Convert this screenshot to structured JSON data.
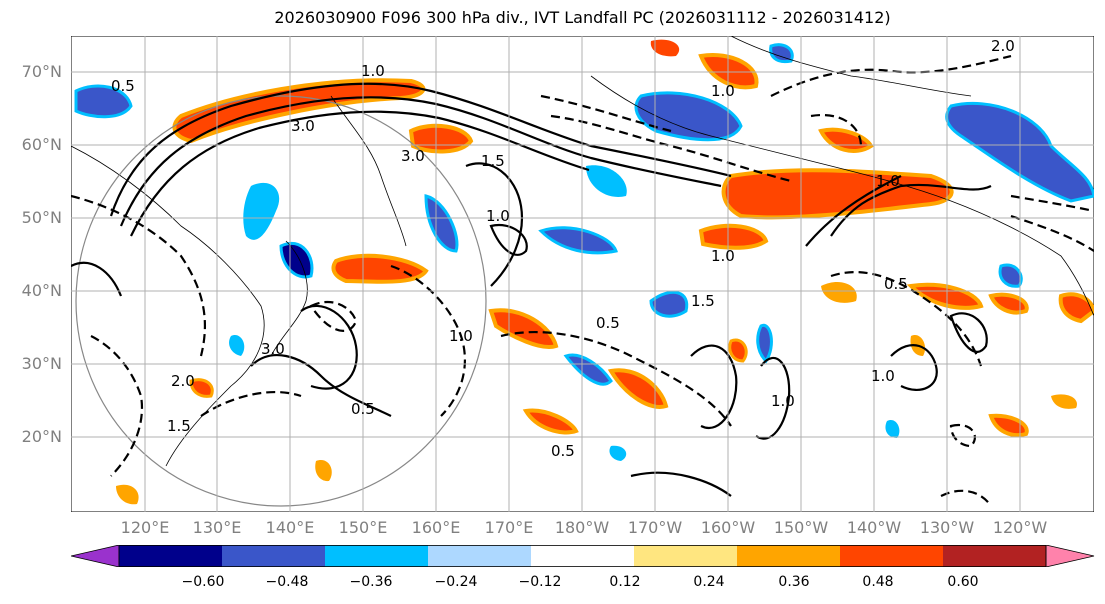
{
  "title": "2026030900 F096 300 hPa div., IVT Landfall PC (2026031112 - 2026031412)",
  "lat_labels": [
    "70°N",
    "60°N",
    "50°N",
    "40°N",
    "30°N",
    "20°N"
  ],
  "lon_labels": [
    "120°E",
    "130°E",
    "140°E",
    "150°E",
    "160°E",
    "170°E",
    "180°W",
    "170°W",
    "160°W",
    "150°W",
    "140°W",
    "130°W",
    "120°W"
  ],
  "contour_labels": [
    "0.5",
    "3.0",
    "3.0",
    "1.0",
    "1.5",
    "2.0",
    "2.0",
    "1.0",
    "0.5",
    "1.0",
    "1.0",
    "0.5",
    "1.5",
    "1.0",
    "3.0",
    "1.0",
    "0.5",
    "1.0",
    "1.5",
    "1.0",
    "0.5"
  ],
  "colorbar": {
    "colors": [
      "#9a32cd",
      "#00008b",
      "#3a56c9",
      "#00bfff",
      "#add8ff",
      "#ffffff",
      "#ffe680",
      "#ffa500",
      "#ff4500",
      "#b22222",
      "#ff82ab"
    ],
    "tick_labels": [
      "−0.60",
      "−0.48",
      "−0.36",
      "−0.24",
      "−0.12",
      "0.12",
      "0.24",
      "0.36",
      "0.48",
      "0.60"
    ]
  },
  "colors": {
    "positive_strong": "#ff4500",
    "positive_mid": "#ffa500",
    "negative_mid": "#3a56c9",
    "negative_light": "#00bfff",
    "grid": "#b0b0b0"
  }
}
